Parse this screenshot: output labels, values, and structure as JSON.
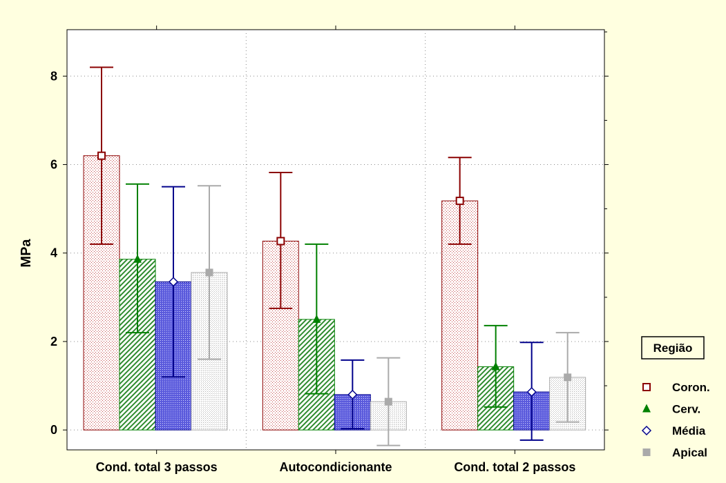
{
  "chart_data": {
    "type": "bar",
    "title": "",
    "xlabel": "",
    "ylabel": "MPa",
    "ylim": [
      -0.45,
      9.05
    ],
    "yticks": [
      0,
      2,
      4,
      6,
      8
    ],
    "grid": true,
    "categories": [
      "Cond. total 3 passos",
      "Autocondicionante",
      "Cond. total 2 passos"
    ],
    "legend": {
      "title": "Região",
      "placement": "right"
    },
    "series": [
      {
        "name": "Coron.",
        "color": "#8b0000",
        "marker": "square-open",
        "pattern": "dots",
        "values": [
          6.2,
          4.27,
          5.18
        ],
        "err_low": [
          4.2,
          2.75,
          4.2
        ],
        "err_high": [
          8.2,
          5.82,
          6.16
        ]
      },
      {
        "name": "Cerv.",
        "color": "#008000",
        "marker": "triangle",
        "pattern": "diagonal",
        "values": [
          3.86,
          2.5,
          1.43
        ],
        "err_low": [
          2.2,
          0.82,
          0.52
        ],
        "err_high": [
          5.56,
          4.2,
          2.36
        ]
      },
      {
        "name": "Média",
        "color": "#00008b",
        "marker": "diamond-open",
        "pattern": "crosshatch",
        "values": [
          3.35,
          0.8,
          0.86
        ],
        "err_low": [
          1.2,
          0.03,
          -0.23
        ],
        "err_high": [
          5.5,
          1.58,
          1.98
        ]
      },
      {
        "name": "Apical",
        "color": "#aaaaaa",
        "marker": "square-filled",
        "pattern": "fine",
        "values": [
          3.56,
          0.64,
          1.19
        ],
        "err_low": [
          1.6,
          -0.35,
          0.18
        ],
        "err_high": [
          5.52,
          1.63,
          2.2
        ]
      }
    ]
  }
}
